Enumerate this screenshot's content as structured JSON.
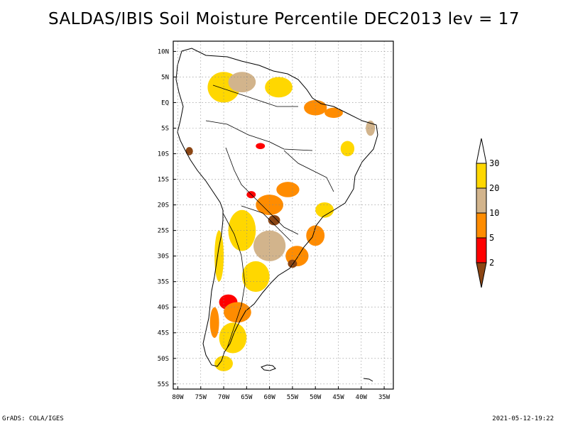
{
  "title": "SALDAS/IBIS Soil Moisture Percentile DEC2013 lev = 17",
  "footer": {
    "left": "GrADS: COLA/IGES",
    "right": "2021-05-12-19:22"
  },
  "axes": {
    "lat_ticks": [
      "10N",
      "5N",
      "EQ",
      "5S",
      "10S",
      "15S",
      "20S",
      "25S",
      "30S",
      "35S",
      "40S",
      "45S",
      "50S",
      "55S"
    ],
    "lat_values": [
      10,
      5,
      0,
      -5,
      -10,
      -15,
      -20,
      -25,
      -30,
      -35,
      -40,
      -45,
      -50,
      -55
    ],
    "lon_ticks": [
      "80W",
      "75W",
      "70W",
      "65W",
      "60W",
      "55W",
      "50W",
      "45W",
      "40W",
      "35W"
    ],
    "lon_values": [
      -80,
      -75,
      -70,
      -65,
      -60,
      -55,
      -50,
      -45,
      -40,
      -35
    ],
    "lat_range": [
      -56,
      12
    ],
    "lon_range": [
      -81,
      -33
    ]
  },
  "colorbar": {
    "labels": [
      "2",
      "5",
      "10",
      "20",
      "30"
    ],
    "colors": [
      "#8B4513",
      "#FF0000",
      "#FF8C00",
      "#D2B48C",
      "#FFD700",
      "#FFFFFF"
    ]
  },
  "regions": [
    {
      "name": "northern-andes-yellow",
      "color": "#FFD700",
      "lon": -70,
      "lat": 3,
      "rx": 3.5,
      "ry": 3
    },
    {
      "name": "venezuela-tan",
      "color": "#D2B48C",
      "lon": -66,
      "lat": 4,
      "rx": 3,
      "ry": 2
    },
    {
      "name": "guyana-yellow",
      "color": "#FFD700",
      "lon": -58,
      "lat": 3,
      "rx": 3,
      "ry": 2
    },
    {
      "name": "amazon-delta-orange",
      "color": "#FF8C00",
      "lon": -50,
      "lat": -1,
      "rx": 2.5,
      "ry": 1.5
    },
    {
      "name": "ne-brazil-orange",
      "color": "#FF8C00",
      "lon": -46,
      "lat": -2,
      "rx": 2,
      "ry": 1
    },
    {
      "name": "east-brazil-tan",
      "color": "#D2B48C",
      "lon": -38,
      "lat": -5,
      "rx": 1,
      "ry": 1.5
    },
    {
      "name": "amazon-red",
      "color": "#FF0000",
      "lon": -62,
      "lat": -8.5,
      "rx": 1,
      "ry": 0.6
    },
    {
      "name": "peru-brown",
      "color": "#8B4513",
      "lon": -77.5,
      "lat": -9.5,
      "rx": 0.8,
      "ry": 0.8
    },
    {
      "name": "central-brazil-orange",
      "color": "#FF8C00",
      "lon": -56,
      "lat": -17,
      "rx": 2.5,
      "ry": 1.5
    },
    {
      "name": "paraguay-orange",
      "color": "#FF8C00",
      "lon": -60,
      "lat": -20,
      "rx": 3,
      "ry": 2
    },
    {
      "name": "gran-chaco-brown",
      "color": "#8B4513",
      "lon": -59,
      "lat": -23,
      "rx": 1.3,
      "ry": 1
    },
    {
      "name": "argentina-yellow-1",
      "color": "#FFD700",
      "lon": -66,
      "lat": -25,
      "rx": 3,
      "ry": 4
    },
    {
      "name": "argentina-tan",
      "color": "#D2B48C",
      "lon": -60,
      "lat": -28,
      "rx": 3.5,
      "ry": 3
    },
    {
      "name": "uruguay-orange",
      "color": "#FF8C00",
      "lon": -54,
      "lat": -30,
      "rx": 2.5,
      "ry": 2
    },
    {
      "name": "uruguay-brown",
      "color": "#8B4513",
      "lon": -55,
      "lat": -31.5,
      "rx": 1,
      "ry": 0.8
    },
    {
      "name": "sw-brazil-orange",
      "color": "#FF8C00",
      "lon": -50,
      "lat": -26,
      "rx": 2,
      "ry": 2
    },
    {
      "name": "pampas-yellow",
      "color": "#FFD700",
      "lon": -63,
      "lat": -34,
      "rx": 3,
      "ry": 3
    },
    {
      "name": "patagonia-red",
      "color": "#FF0000",
      "lon": -69,
      "lat": -39,
      "rx": 2,
      "ry": 1.5
    },
    {
      "name": "patagonia-orange",
      "color": "#FF8C00",
      "lon": -67,
      "lat": -41,
      "rx": 3,
      "ry": 2
    },
    {
      "name": "patagonia-yellow",
      "color": "#FFD700",
      "lon": -68,
      "lat": -46,
      "rx": 3,
      "ry": 3
    },
    {
      "name": "chile-south-orange",
      "color": "#FF8C00",
      "lon": -72,
      "lat": -43,
      "rx": 1,
      "ry": 3
    },
    {
      "name": "tierra-yellow",
      "color": "#FFD700",
      "lon": -70,
      "lat": -51,
      "rx": 2,
      "ry": 1.5
    },
    {
      "name": "chile-central-yellow",
      "color": "#FFD700",
      "lon": -71,
      "lat": -30,
      "rx": 1,
      "ry": 5
    },
    {
      "name": "bolivia-red",
      "color": "#FF0000",
      "lon": -64,
      "lat": -18,
      "rx": 1,
      "ry": 0.7
    },
    {
      "name": "brazil-ne-yellow",
      "color": "#FFD700",
      "lon": -43,
      "lat": -9,
      "rx": 1.5,
      "ry": 1.5
    },
    {
      "name": "brazil-sao-yellow",
      "color": "#FFD700",
      "lon": -48,
      "lat": -21,
      "rx": 2,
      "ry": 1.5
    }
  ]
}
